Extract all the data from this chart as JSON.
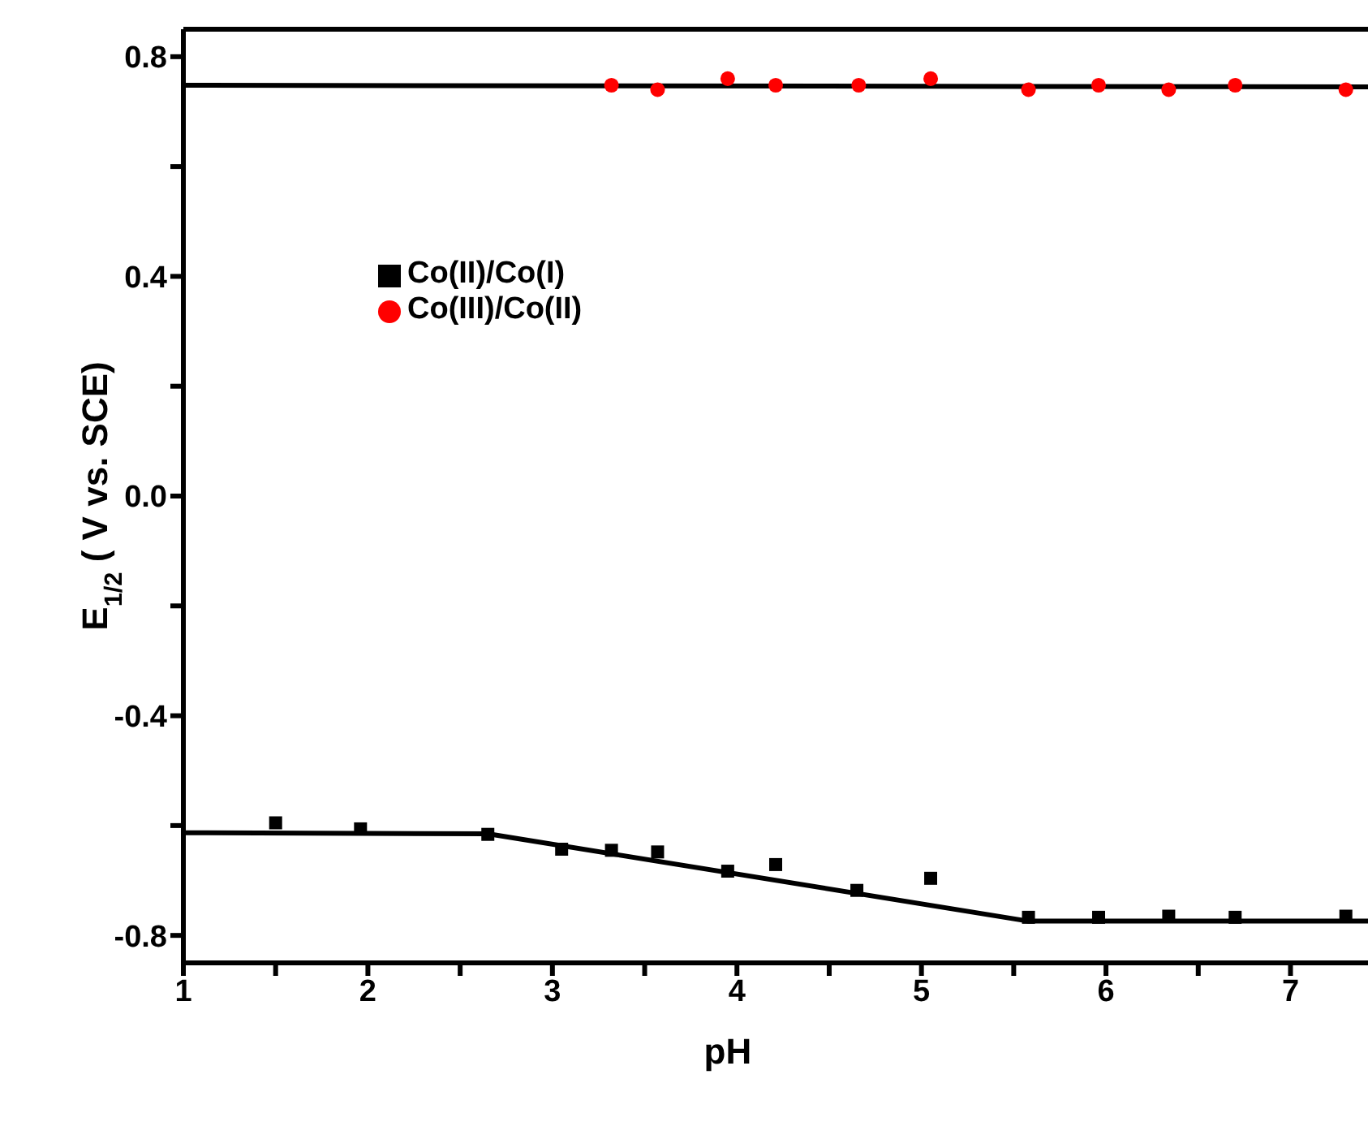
{
  "chart_data": {
    "type": "scatter",
    "xlabel": "pH",
    "ylabel": "E$_{1/2}$ ( V vs. SCE)",
    "xlim": [
      1,
      7.42
    ],
    "ylim": [
      -0.85,
      0.85
    ],
    "xticks": [
      1,
      {
        "value": 1.5,
        "label": null
      },
      2,
      {
        "value": 2.5,
        "label": null
      },
      3,
      {
        "value": 3.5,
        "label": null
      },
      4,
      {
        "value": 4.5,
        "label": null
      },
      5,
      {
        "value": 5.5,
        "label": null
      },
      6,
      {
        "value": 6.5,
        "label": null
      },
      7
    ],
    "yticks": [
      {
        "value": -0.8,
        "label": "-0.8"
      },
      {
        "value": -0.6,
        "label": null
      },
      {
        "value": -0.4,
        "label": "-0.4"
      },
      {
        "value": -0.2,
        "label": null
      },
      {
        "value": 0,
        "label": "0.0"
      },
      {
        "value": 0.2,
        "label": null
      },
      {
        "value": 0.4,
        "label": "0.4"
      },
      {
        "value": 0.6,
        "label": null
      },
      {
        "value": 0.8,
        "label": "0.8"
      }
    ],
    "grid": false,
    "legend": "left",
    "series": [
      {
        "name": "Co(II)/Co(I)",
        "marker": "square",
        "color": "#000000",
        "x": [
          1.5,
          1.96,
          2.65,
          3.05,
          3.32,
          3.57,
          3.95,
          4.21,
          4.65,
          5.05,
          5.58,
          5.96,
          6.34,
          6.7,
          7.3
        ],
        "values": [
          -0.595,
          -0.606,
          -0.616,
          -0.643,
          -0.645,
          -0.648,
          -0.683,
          -0.671,
          -0.718,
          -0.696,
          -0.767,
          -0.767,
          -0.765,
          -0.767,
          -0.765
        ]
      },
      {
        "name": "Co(III)/Co(II)",
        "marker": "circle",
        "color": "#ff0000",
        "x": [
          3.32,
          3.57,
          3.95,
          4.21,
          4.66,
          5.05,
          5.58,
          5.96,
          6.34,
          6.7,
          7.3
        ],
        "values": [
          0.748,
          0.74,
          0.76,
          0.748,
          0.748,
          0.76,
          0.74,
          0.748,
          0.74,
          0.748,
          0.74
        ]
      },
      {
        "type": "line",
        "marker": "none",
        "color": "#000000",
        "x": [
          1,
          2.65,
          5.58,
          7.42
        ],
        "values": [
          -0.613,
          -0.615,
          -0.774,
          -0.774
        ]
      },
      {
        "type": "line",
        "marker": "none",
        "color": "#000000",
        "x": [
          1,
          7.42
        ],
        "values": [
          0.748,
          0.745
        ]
      }
    ]
  }
}
